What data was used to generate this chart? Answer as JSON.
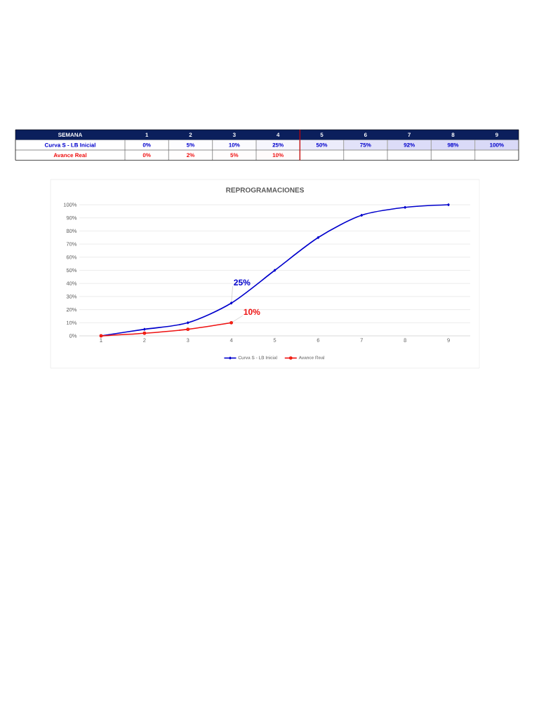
{
  "chart_data": [
    {
      "type": "heatmap",
      "annotations": [
        "SEMANA"
      ],
      "categories": [
        "1",
        "2",
        "3",
        "4",
        "5",
        "6",
        "7",
        "8",
        "9"
      ],
      "y_categories": [
        "Curva S - LB Inicial",
        "Avance Real"
      ],
      "cells": [
        [
          0,
          5,
          10,
          25,
          50,
          75,
          92,
          98,
          100
        ],
        [
          0,
          2,
          5,
          10,
          null,
          null,
          null,
          null,
          null
        ]
      ],
      "cell_labels": [
        [
          "0%",
          "5%",
          "10%",
          "25%",
          "50%",
          "75%",
          "92%",
          "98%",
          "100%"
        ],
        [
          "0%",
          "2%",
          "5%",
          "10%",
          null,
          null,
          null,
          null,
          null
        ]
      ]
    },
    {
      "type": "line",
      "title": "REPROGRAMACIONES",
      "categories": [
        "1",
        "2",
        "3",
        "4",
        "5",
        "6",
        "7",
        "8",
        "9"
      ],
      "series": [
        {
          "name": "Curva S - LB Inicial",
          "color": "#0000cc",
          "marker": "diamond",
          "values": [
            0,
            5,
            10,
            25,
            50,
            75,
            92,
            98,
            100
          ]
        },
        {
          "name": "Avance Real",
          "color": "#ee1111",
          "marker": "circle",
          "values": [
            0,
            2,
            5,
            10,
            null,
            null,
            null,
            null,
            null
          ]
        }
      ],
      "ylim": [
        0,
        100
      ],
      "yticks": [
        {
          "value": 0,
          "label": "0%"
        },
        {
          "value": 10,
          "label": "10%"
        },
        {
          "value": 20,
          "label": "20%"
        },
        {
          "value": 30,
          "label": "30%"
        },
        {
          "value": 40,
          "label": "40%"
        },
        {
          "value": 50,
          "label": "50%"
        },
        {
          "value": 60,
          "label": "60%"
        },
        {
          "value": 70,
          "label": "70%"
        },
        {
          "value": 80,
          "label": "80%"
        },
        {
          "value": 90,
          "label": "90%"
        },
        {
          "value": 100,
          "label": "100%"
        }
      ],
      "grid": "y",
      "legend": "bottom",
      "line_style": "solid",
      "annotations": [
        {
          "text": "25%",
          "x": "4",
          "y": 25
        },
        {
          "text": "10%",
          "x": "4",
          "y": 10
        }
      ]
    }
  ]
}
